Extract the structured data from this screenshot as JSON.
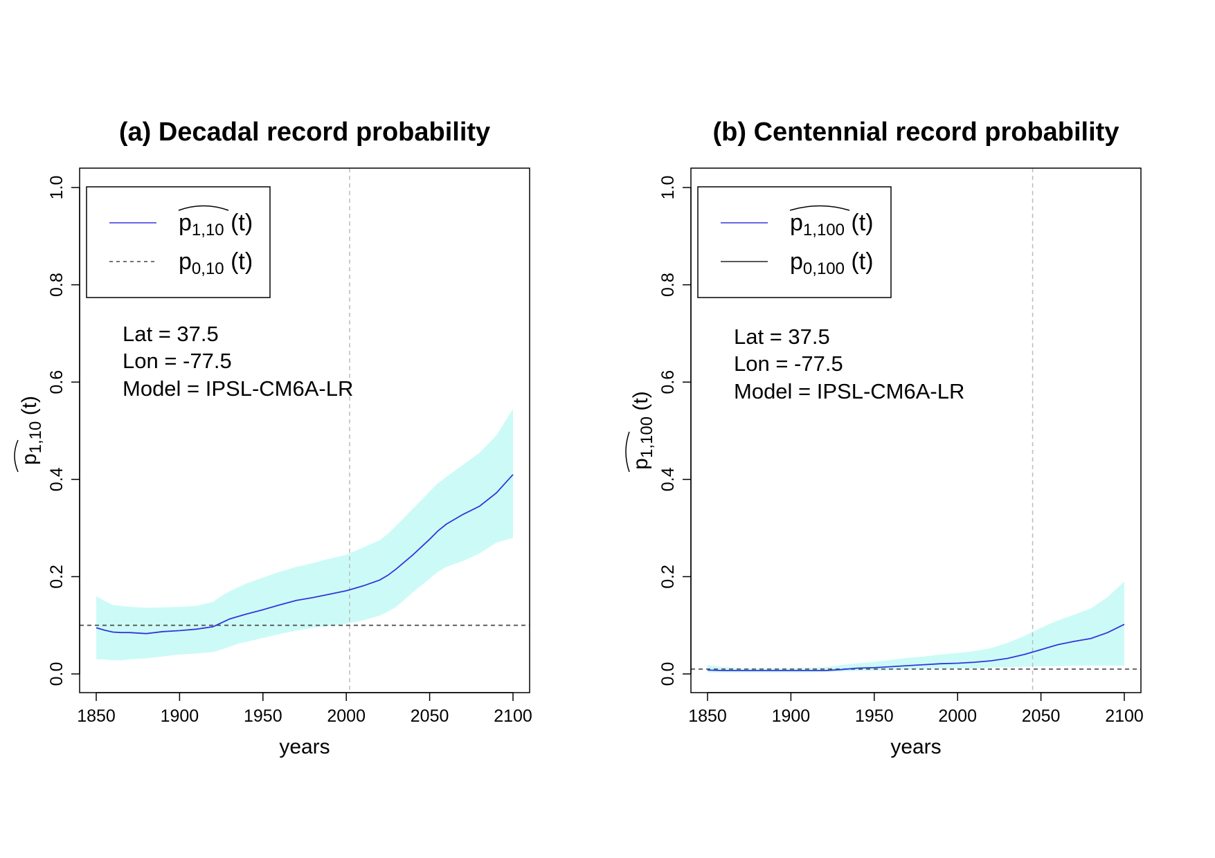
{
  "chart_data": [
    {
      "type": "line",
      "title": "(a) Decadal record probability",
      "xlabel": "years",
      "ylabel": {
        "base": "p",
        "sub": "1,10",
        "suffix": " (t)"
      },
      "xlim": [
        1850,
        2100
      ],
      "ylim": [
        0,
        1
      ],
      "xticks": [
        1850,
        1900,
        1950,
        2000,
        2050,
        2100
      ],
      "yticks": [
        0.0,
        0.2,
        0.4,
        0.6,
        0.8,
        1.0
      ],
      "ytick_labels": [
        "0.0",
        "0.2",
        "0.4",
        "0.6",
        "0.8",
        "1.0"
      ],
      "vline_x": 2002,
      "hline": {
        "y": 0.1,
        "style": "dashed",
        "color": "#555555"
      },
      "legend": {
        "position": "top-left",
        "entries": [
          {
            "base": "p",
            "sub": "1,10",
            "suffix": " (t)",
            "hat": true,
            "color": "#3333dd",
            "style": "solid"
          },
          {
            "base": "p",
            "sub": "0,10",
            "suffix": " (t)",
            "hat": false,
            "color": "#444444",
            "style": "dashed"
          }
        ]
      },
      "annotations": [
        "Lat = 37.5",
        "Lon = -77.5",
        "Model = IPSL-CM6A-LR"
      ],
      "series": [
        {
          "name": "p1,10 hat (t)",
          "color": "#3333dd",
          "x": [
            1850,
            1855,
            1860,
            1865,
            1870,
            1880,
            1890,
            1900,
            1910,
            1920,
            1925,
            1930,
            1935,
            1940,
            1950,
            1960,
            1970,
            1980,
            1990,
            2000,
            2010,
            2020,
            2025,
            2030,
            2040,
            2050,
            2055,
            2060,
            2070,
            2080,
            2090,
            2100
          ],
          "values": [
            0.095,
            0.09,
            0.086,
            0.085,
            0.085,
            0.083,
            0.087,
            0.089,
            0.092,
            0.097,
            0.105,
            0.113,
            0.118,
            0.123,
            0.132,
            0.142,
            0.151,
            0.157,
            0.164,
            0.171,
            0.181,
            0.193,
            0.203,
            0.216,
            0.245,
            0.277,
            0.294,
            0.308,
            0.328,
            0.345,
            0.372,
            0.41
          ],
          "band_upper": [
            0.16,
            0.15,
            0.142,
            0.14,
            0.138,
            0.136,
            0.137,
            0.138,
            0.14,
            0.148,
            0.16,
            0.17,
            0.178,
            0.186,
            0.198,
            0.21,
            0.22,
            0.228,
            0.237,
            0.245,
            0.26,
            0.275,
            0.288,
            0.305,
            0.34,
            0.375,
            0.392,
            0.405,
            0.43,
            0.455,
            0.49,
            0.545
          ],
          "band_lower": [
            0.03,
            0.03,
            0.028,
            0.028,
            0.03,
            0.032,
            0.036,
            0.04,
            0.042,
            0.045,
            0.05,
            0.056,
            0.062,
            0.066,
            0.074,
            0.082,
            0.089,
            0.095,
            0.099,
            0.103,
            0.11,
            0.12,
            0.128,
            0.138,
            0.168,
            0.196,
            0.21,
            0.22,
            0.232,
            0.248,
            0.27,
            0.28
          ]
        }
      ]
    },
    {
      "type": "line",
      "title": "(b) Centennial record probability",
      "xlabel": "years",
      "ylabel": {
        "base": "p",
        "sub": "1,100",
        "suffix": " (t)"
      },
      "xlim": [
        1850,
        2100
      ],
      "ylim": [
        0,
        1
      ],
      "xticks": [
        1850,
        1900,
        1950,
        2000,
        2050,
        2100
      ],
      "yticks": [
        0.0,
        0.2,
        0.4,
        0.6,
        0.8,
        1.0
      ],
      "ytick_labels": [
        "0.0",
        "0.2",
        "0.4",
        "0.6",
        "0.8",
        "1.0"
      ],
      "vline_x": 2045,
      "hline": {
        "y": 0.01,
        "style": "dashed",
        "color": "#555555"
      },
      "legend": {
        "position": "top-left",
        "entries": [
          {
            "base": "p",
            "sub": "1,100",
            "suffix": " (t)",
            "hat": true,
            "color": "#3333dd",
            "style": "solid"
          },
          {
            "base": "p",
            "sub": "0,100",
            "suffix": " (t)",
            "hat": false,
            "color": "#222222",
            "style": "solid"
          }
        ]
      },
      "annotations": [
        "Lat = 37.5",
        "Lon = -77.5",
        "Model = IPSL-CM6A-LR"
      ],
      "series": [
        {
          "name": "p1,100 hat (t)",
          "color": "#3333dd",
          "x": [
            1850,
            1860,
            1870,
            1880,
            1890,
            1900,
            1910,
            1920,
            1930,
            1940,
            1950,
            1960,
            1970,
            1980,
            1990,
            2000,
            2010,
            2020,
            2030,
            2040,
            2050,
            2060,
            2070,
            2080,
            2090,
            2100
          ],
          "values": [
            0.008,
            0.007,
            0.007,
            0.007,
            0.007,
            0.007,
            0.007,
            0.007,
            0.009,
            0.012,
            0.013,
            0.015,
            0.017,
            0.019,
            0.021,
            0.022,
            0.024,
            0.027,
            0.032,
            0.04,
            0.05,
            0.06,
            0.067,
            0.073,
            0.085,
            0.102
          ],
          "band_upper": [
            0.018,
            0.014,
            0.012,
            0.012,
            0.012,
            0.012,
            0.013,
            0.014,
            0.018,
            0.022,
            0.025,
            0.029,
            0.033,
            0.036,
            0.04,
            0.043,
            0.047,
            0.053,
            0.064,
            0.078,
            0.095,
            0.11,
            0.122,
            0.135,
            0.158,
            0.19
          ],
          "band_lower": [
            0.003,
            0.003,
            0.003,
            0.003,
            0.003,
            0.003,
            0.003,
            0.004,
            0.005,
            0.006,
            0.007,
            0.008,
            0.009,
            0.01,
            0.011,
            0.011,
            0.012,
            0.013,
            0.014,
            0.015,
            0.016,
            0.016,
            0.017,
            0.017,
            0.017,
            0.017
          ]
        }
      ]
    }
  ]
}
